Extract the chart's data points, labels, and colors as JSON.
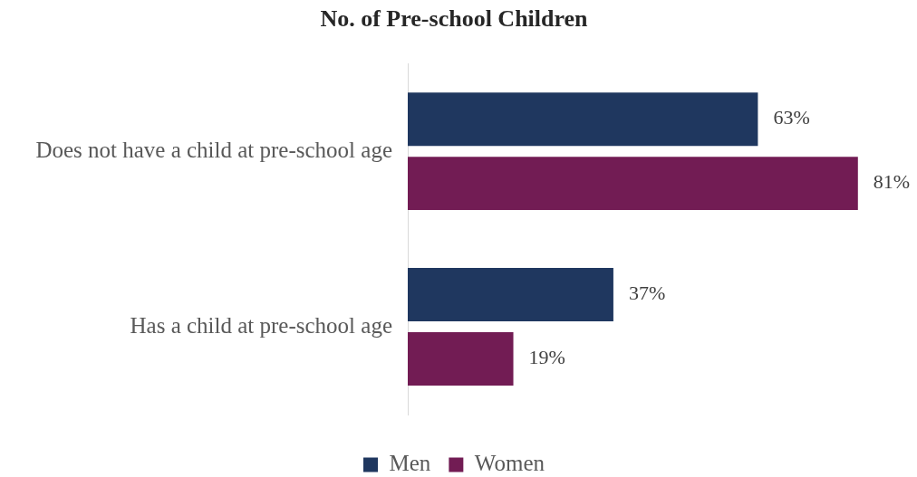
{
  "chart_data": {
    "type": "bar",
    "orientation": "horizontal",
    "title": "No. of Pre-school Children",
    "categories": [
      "Does not have a child at pre-school age",
      "Has a child at pre-school age"
    ],
    "series": [
      {
        "name": "Men",
        "color": "#1f375f",
        "values": [
          63,
          37
        ],
        "value_labels": [
          "63%",
          "37%"
        ]
      },
      {
        "name": "Women",
        "color": "#721c54",
        "values": [
          81,
          19
        ],
        "value_labels": [
          "81%",
          "19%"
        ]
      }
    ],
    "tick_labels": "y",
    "legend": "bottom"
  }
}
